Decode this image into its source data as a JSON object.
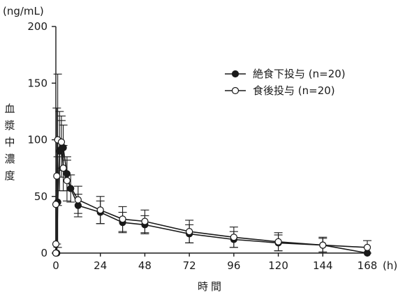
{
  "chart_data": {
    "type": "line",
    "unit_label": "(ng/mL)",
    "ylabel": "血漿中濃度",
    "xlabel": "時間",
    "x_unit_label": "(h)",
    "ylim": [
      0,
      200
    ],
    "xlim": [
      0,
      168
    ],
    "yticks": [
      0,
      50,
      100,
      150,
      200
    ],
    "xticks": [
      0,
      24,
      48,
      72,
      96,
      120,
      144,
      168
    ],
    "legend_position": "top-right",
    "series": [
      {
        "name": "絶食下投与 (n=20)",
        "marker": "filled",
        "color": "#1a1a1a",
        "points": [
          {
            "x": 0,
            "y": 0,
            "err": 0
          },
          {
            "x": 0.5,
            "y": 0,
            "err": 0
          },
          {
            "x": 1,
            "y": 45,
            "err": 40
          },
          {
            "x": 2,
            "y": 90,
            "err": 35
          },
          {
            "x": 3,
            "y": 92,
            "err": 25
          },
          {
            "x": 4,
            "y": 93,
            "err": 20
          },
          {
            "x": 6,
            "y": 70,
            "err": 15
          },
          {
            "x": 8,
            "y": 57,
            "err": 12
          },
          {
            "x": 12,
            "y": 42,
            "err": 10
          },
          {
            "x": 24,
            "y": 36,
            "err": 10
          },
          {
            "x": 36,
            "y": 27,
            "err": 9
          },
          {
            "x": 48,
            "y": 25,
            "err": 8
          },
          {
            "x": 72,
            "y": 17,
            "err": 8
          },
          {
            "x": 96,
            "y": 12,
            "err": 7
          },
          {
            "x": 120,
            "y": 9,
            "err": 7
          },
          {
            "x": 144,
            "y": 7,
            "err": 6
          },
          {
            "x": 168,
            "y": 0,
            "err": 0
          }
        ]
      },
      {
        "name": "食後投与 (n=20)",
        "marker": "open",
        "color": "#1a1a1a",
        "points": [
          {
            "x": 0,
            "y": 0,
            "err": 0
          },
          {
            "x": 0,
            "y": 8,
            "err": 0
          },
          {
            "x": 0,
            "y": 43,
            "err": 0
          },
          {
            "x": 0.5,
            "y": 68,
            "err": 60
          },
          {
            "x": 1,
            "y": 100,
            "err": 58
          },
          {
            "x": 3,
            "y": 98,
            "err": 23
          },
          {
            "x": 4,
            "y": 75,
            "err": 20
          },
          {
            "x": 6,
            "y": 64,
            "err": 18
          },
          {
            "x": 12,
            "y": 47,
            "err": 12
          },
          {
            "x": 24,
            "y": 38,
            "err": 12
          },
          {
            "x": 36,
            "y": 30,
            "err": 11
          },
          {
            "x": 48,
            "y": 28,
            "err": 10
          },
          {
            "x": 72,
            "y": 19,
            "err": 10
          },
          {
            "x": 96,
            "y": 14,
            "err": 9
          },
          {
            "x": 120,
            "y": 10,
            "err": 8
          },
          {
            "x": 144,
            "y": 7,
            "err": 7
          },
          {
            "x": 168,
            "y": 5,
            "err": 6
          }
        ]
      }
    ]
  }
}
